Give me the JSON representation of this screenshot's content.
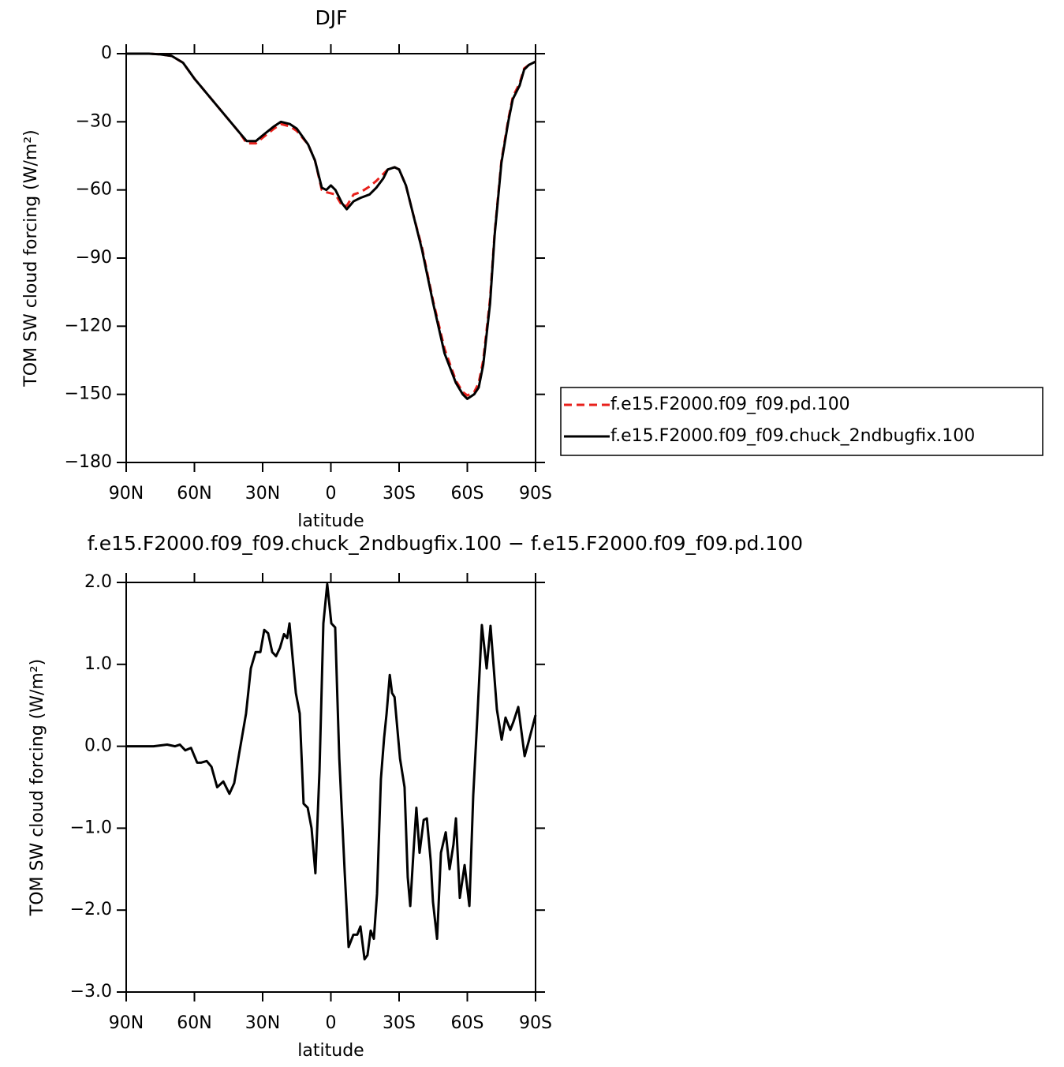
{
  "chart_data": [
    {
      "type": "line",
      "title": "DJF",
      "xlabel": "latitude",
      "ylabel": "TOM SW cloud forcing (W/m²)",
      "xlim": [
        90,
        -90
      ],
      "ylim": [
        -180,
        0
      ],
      "xticks": [
        {
          "value": 90,
          "label": "90N"
        },
        {
          "value": 60,
          "label": "60N"
        },
        {
          "value": 30,
          "label": "30N"
        },
        0,
        {
          "value": -30,
          "label": "30S"
        },
        {
          "value": -60,
          "label": "60S"
        },
        {
          "value": -90,
          "label": "90S"
        }
      ],
      "yticks": [
        0,
        {
          "value": -30,
          "label": "−30"
        },
        {
          "value": -60,
          "label": "−60"
        },
        {
          "value": -90,
          "label": "−90"
        },
        {
          "value": -120,
          "label": "−120"
        },
        {
          "value": -150,
          "label": "−150"
        },
        {
          "value": -180,
          "label": "−180"
        }
      ],
      "legend": "right",
      "x": [
        90,
        85,
        80,
        75,
        70,
        65,
        60,
        55,
        50,
        45,
        40,
        37,
        33,
        30,
        25,
        22,
        18,
        15,
        10,
        7,
        4,
        2,
        0,
        -2,
        -5,
        -7,
        -10,
        -13,
        -17,
        -20,
        -23,
        -25,
        -28,
        -30,
        -33,
        -36,
        -40,
        -45,
        -50,
        -55,
        -58,
        -60,
        -63,
        -65,
        -67,
        -70,
        -72,
        -75,
        -78,
        -80,
        -83,
        -85,
        -87,
        -90
      ],
      "series": [
        {
          "name": "f.e15.F2000.f09_f09.pd.100",
          "color": "#e8211c",
          "dash": "dashed",
          "values": [
            0,
            0,
            0,
            -0.3,
            -1,
            -4,
            -11,
            -17,
            -23,
            -29,
            -35,
            -39.5,
            -39.5,
            -37,
            -33,
            -31,
            -32,
            -34,
            -40,
            -47,
            -60,
            -61,
            -61.5,
            -62,
            -67,
            -67,
            -62,
            -61,
            -58.5,
            -56,
            -53,
            -51,
            -50,
            -51,
            -58,
            -70,
            -85,
            -109,
            -130,
            -144,
            -149,
            -150.5,
            -149,
            -145,
            -135,
            -108,
            -79,
            -47,
            -29,
            -19,
            -13,
            -6.5,
            -5,
            -3.5
          ]
        },
        {
          "name": "f.e15.F2000.f09_f09.chuck_2ndbugfix.100",
          "color": "#000000",
          "dash": "solid",
          "values": [
            0,
            0,
            0,
            -0.3,
            -1,
            -4,
            -11,
            -17,
            -23,
            -29,
            -35,
            -38.5,
            -38.5,
            -36,
            -32,
            -30,
            -31,
            -33,
            -40,
            -47,
            -59,
            -60,
            -58,
            -60,
            -66,
            -68.5,
            -65,
            -63.5,
            -62,
            -59,
            -55,
            -51,
            -50,
            -51,
            -58,
            -70,
            -86,
            -110,
            -132,
            -145,
            -150,
            -152,
            -150,
            -147,
            -137,
            -110,
            -80,
            -48,
            -30,
            -20,
            -14,
            -7,
            -5,
            -3.5
          ]
        }
      ]
    },
    {
      "type": "line",
      "title": "f.e15.F2000.f09_f09.chuck_2ndbugfix.100 − f.e15.F2000.f09_f09.pd.100",
      "xlabel": "latitude",
      "ylabel": "TOM SW cloud forcing (W/m²)",
      "xlim": [
        90,
        -90
      ],
      "ylim": [
        -3,
        2
      ],
      "xticks": [
        {
          "value": 90,
          "label": "90N"
        },
        {
          "value": 60,
          "label": "60N"
        },
        {
          "value": 30,
          "label": "30N"
        },
        0,
        {
          "value": -30,
          "label": "30S"
        },
        {
          "value": -60,
          "label": "60S"
        },
        {
          "value": -90,
          "label": "90S"
        }
      ],
      "yticks": [
        {
          "value": 2,
          "label": "2.0"
        },
        {
          "value": 1,
          "label": "1.0"
        },
        {
          "value": 0,
          "label": "0.0"
        },
        {
          "value": -1,
          "label": "−1.0"
        },
        {
          "value": -2,
          "label": "−2.0"
        },
        {
          "value": -3,
          "label": "−3.0"
        }
      ],
      "color": "#000000",
      "x": [
        90,
        78,
        72,
        68.5,
        66.4,
        64,
        61.5,
        58.8,
        57,
        54.6,
        52.5,
        50,
        47.3,
        44.6,
        42.5,
        40.4,
        37.3,
        35.2,
        33.1,
        31,
        29.3,
        27.6,
        25.8,
        24.1,
        22.4,
        20.6,
        19.2,
        18.2,
        15.4,
        13.7,
        12,
        10.2,
        8.5,
        6.8,
        5,
        3.3,
        1.6,
        -0.2,
        -1.9,
        -3.7,
        -6.1,
        -7.8,
        -9.9,
        -11.6,
        -13,
        -14.8,
        -16.1,
        -17.5,
        -18.9,
        -20.3,
        -22,
        -23.4,
        -24.5,
        -25.9,
        -26.9,
        -28,
        -30.4,
        -32.4,
        -33.8,
        -34.9,
        -36.3,
        -37.6,
        -39,
        -40.8,
        -42.2,
        -43.9,
        -44.9,
        -46.7,
        -48.4,
        -50.5,
        -52.2,
        -53.9,
        -55,
        -56.7,
        -58.8,
        -60.9,
        -62.6,
        -64.4,
        -66.4,
        -68.5,
        -70.2,
        -73,
        -75.1,
        -76.8,
        -78.9,
        -80.3,
        -82.4,
        -85.2,
        -86.9,
        -90
      ],
      "values": [
        0,
        0,
        0.02,
        0,
        0.02,
        -0.05,
        -0.02,
        -0.2,
        -0.2,
        -0.18,
        -0.25,
        -0.5,
        -0.43,
        -0.58,
        -0.45,
        -0.1,
        0.4,
        0.95,
        1.15,
        1.15,
        1.42,
        1.38,
        1.15,
        1.1,
        1.2,
        1.37,
        1.32,
        1.5,
        0.65,
        0.4,
        -0.7,
        -0.75,
        -1.0,
        -1.55,
        -0.3,
        1.5,
        1.98,
        1.5,
        1.45,
        -0.15,
        -1.55,
        -2.45,
        -2.3,
        -2.3,
        -2.2,
        -2.6,
        -2.55,
        -2.25,
        -2.35,
        -1.8,
        -0.4,
        0.1,
        0.4,
        0.87,
        0.65,
        0.6,
        -0.15,
        -0.5,
        -1.6,
        -1.95,
        -1.3,
        -0.75,
        -1.3,
        -0.9,
        -0.88,
        -1.4,
        -1.9,
        -2.35,
        -1.3,
        -1.05,
        -1.5,
        -1.2,
        -0.88,
        -1.85,
        -1.45,
        -1.95,
        -0.6,
        0.35,
        1.48,
        0.95,
        1.47,
        0.45,
        0.08,
        0.35,
        0.2,
        0.3,
        0.48,
        -0.12,
        0.05,
        0.38
      ]
    }
  ]
}
